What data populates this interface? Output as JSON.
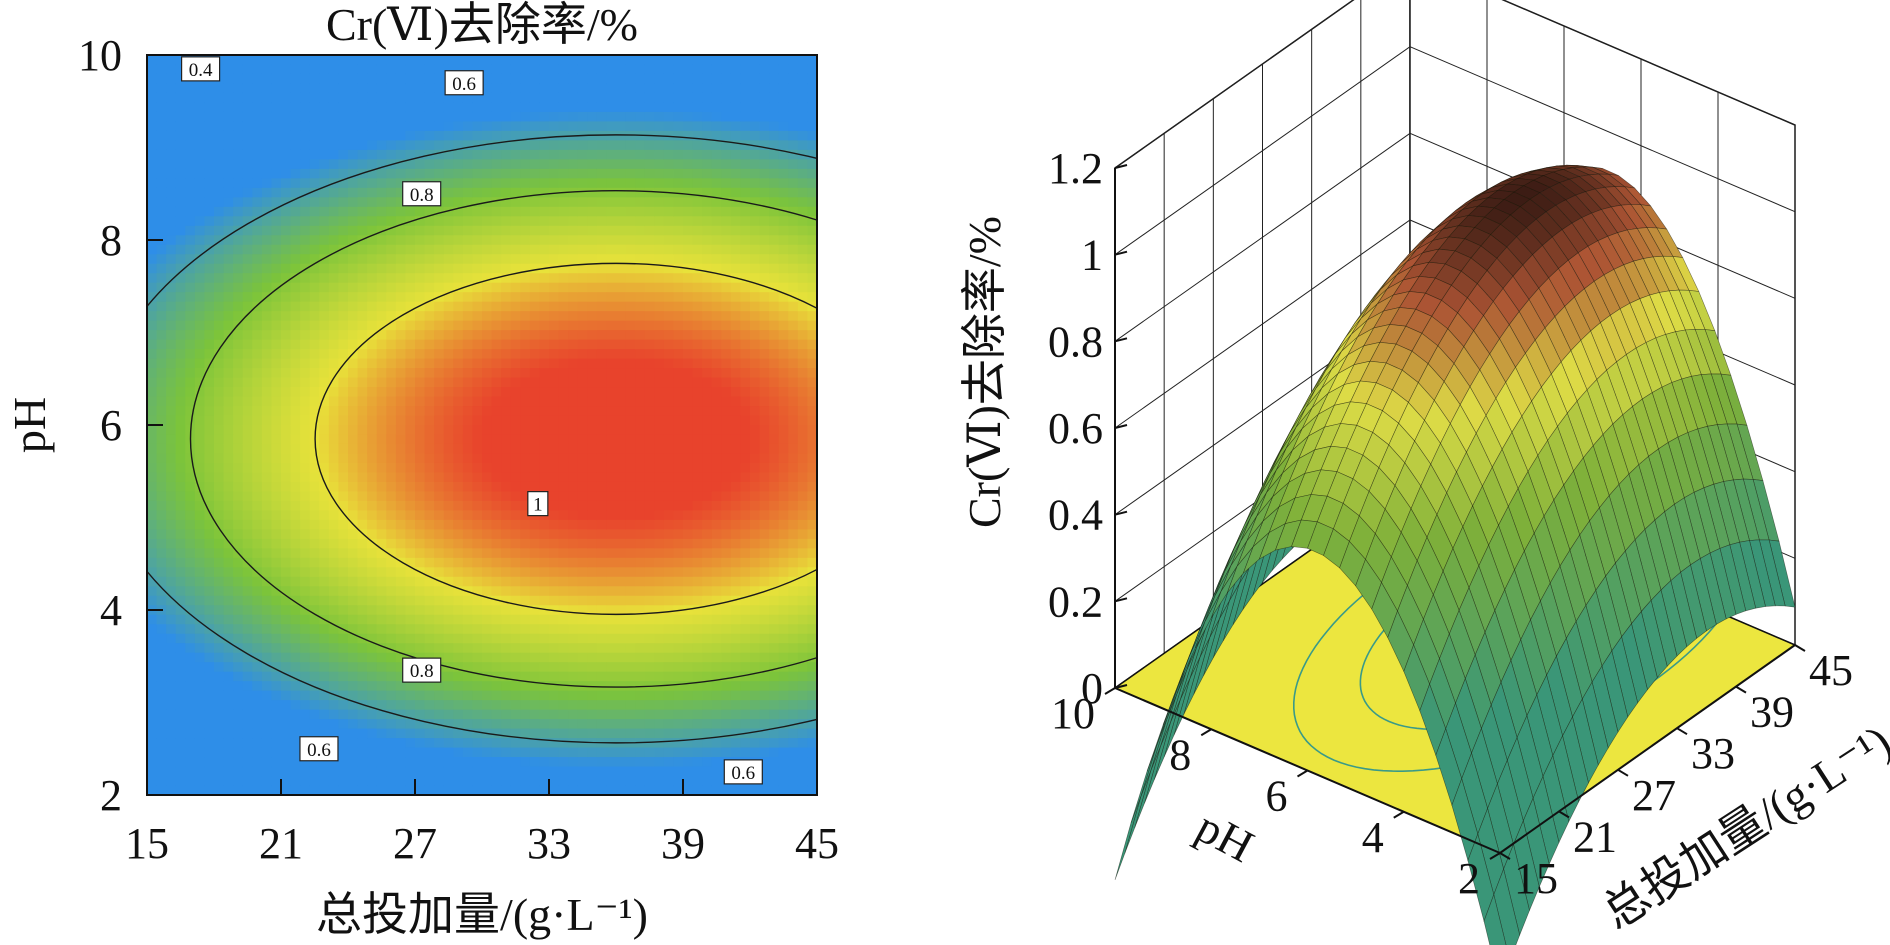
{
  "chart_data": [
    {
      "type": "heatmap",
      "subtype": "contour",
      "title": "Cr(Ⅵ)去除率/%",
      "xlabel": "总投加量/(g·L⁻¹)",
      "ylabel": "pH",
      "xlim": [
        15,
        45
      ],
      "ylim": [
        2,
        10
      ],
      "x_ticks": [
        "15",
        "21",
        "27",
        "33",
        "39",
        "45"
      ],
      "y_ticks": [
        "2",
        "4",
        "6",
        "8",
        "10"
      ],
      "contour_levels": [
        0.4,
        0.6,
        0.8,
        1.0
      ],
      "contour_labels": [
        {
          "text": "0.4",
          "x": 17.4,
          "y": 9.85
        },
        {
          "text": "0.6",
          "x": 29.2,
          "y": 9.7
        },
        {
          "text": "0.8",
          "x": 27.3,
          "y": 8.5
        },
        {
          "text": "1",
          "x": 32.5,
          "y": 5.15
        },
        {
          "text": "0.8",
          "x": 27.3,
          "y": 3.35
        },
        {
          "text": "0.6",
          "x": 22.7,
          "y": 2.5
        },
        {
          "text": "0.6",
          "x": 41.7,
          "y": 2.25
        }
      ],
      "optimum": {
        "x": 36,
        "y": 5.85,
        "value": 1.0
      },
      "colorscale": [
        "#2e8ee8",
        "#7cc43a",
        "#e8e23a",
        "#e8432c"
      ]
    },
    {
      "type": "surface",
      "zlabel": "Cr(Ⅵ)去除率/%",
      "xlabel": "总投加量/(g·L⁻¹)",
      "ylabel": "pH",
      "xlim": [
        15,
        45
      ],
      "ylim": [
        2,
        10
      ],
      "zlim": [
        0,
        1.2
      ],
      "z_ticks": [
        "0",
        "0.2",
        "0.4",
        "0.6",
        "0.8",
        "1",
        "1.2"
      ],
      "x_ticks": [
        "15",
        "21",
        "27",
        "33",
        "39",
        "45"
      ],
      "y_ticks": [
        "2",
        "4",
        "6",
        "8",
        "10"
      ],
      "floor_contour": true
    }
  ]
}
